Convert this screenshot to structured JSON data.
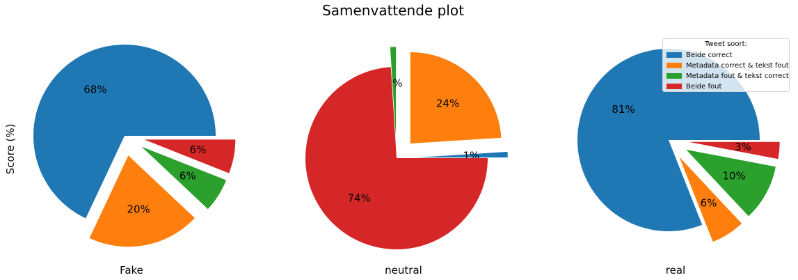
{
  "title": "Samenvattende plot",
  "ylabel": "Score (%)",
  "legend": {
    "title": "Tweet soort:",
    "placement": "upper right",
    "entries": [
      {
        "label": "Beide correct",
        "color": "#1f77b4"
      },
      {
        "label": "Metadata correct & tekst fout",
        "color": "#ff7f0e"
      },
      {
        "label": "Metadata fout & tekst correct",
        "color": "#2ca02c"
      },
      {
        "label": "Beide fout",
        "color": "#d62728"
      }
    ]
  },
  "chart_data": [
    {
      "type": "pie",
      "xlabel": "Fake",
      "categories": [
        "Beide correct",
        "Metadata correct & tekst fout",
        "Metadata fout & tekst correct",
        "Beide fout"
      ],
      "values": [
        68,
        20,
        6,
        6
      ],
      "labels": [
        "68%",
        "20%",
        "6%",
        "6%"
      ],
      "colors": [
        "#1f77b4",
        "#ff7f0e",
        "#2ca02c",
        "#d62728"
      ],
      "exploded": [
        false,
        true,
        true,
        true
      ]
    },
    {
      "type": "pie",
      "xlabel": "neutral",
      "categories": [
        "Beide correct",
        "Metadata correct & tekst fout",
        "Metadata fout & tekst correct",
        "Beide fout"
      ],
      "values": [
        1,
        24,
        1,
        74
      ],
      "labels": [
        "1%",
        "24%",
        "1%",
        "74%"
      ],
      "colors": [
        "#1f77b4",
        "#ff7f0e",
        "#2ca02c",
        "#d62728"
      ],
      "exploded": [
        true,
        true,
        true,
        false
      ]
    },
    {
      "type": "pie",
      "xlabel": "real",
      "categories": [
        "Beide correct",
        "Metadata correct & tekst fout",
        "Metadata fout & tekst correct",
        "Beide fout"
      ],
      "values": [
        81,
        6,
        10,
        3
      ],
      "labels": [
        "81%",
        "6%",
        "10%",
        "3%"
      ],
      "colors": [
        "#1f77b4",
        "#ff7f0e",
        "#2ca02c",
        "#d62728"
      ],
      "exploded": [
        false,
        true,
        true,
        true
      ]
    }
  ]
}
